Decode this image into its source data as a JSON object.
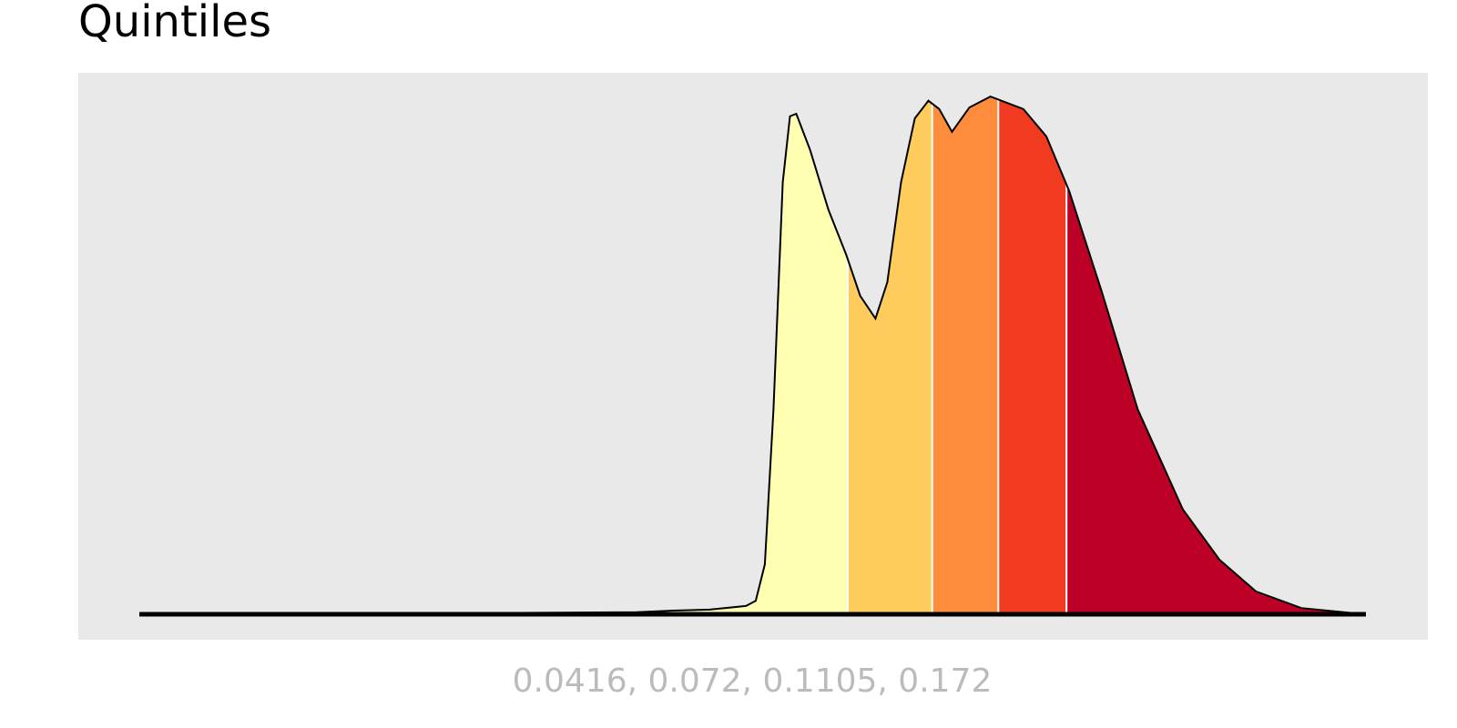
{
  "chart_data": {
    "type": "density",
    "title": "Quintiles",
    "x_label": "0.0416, 0.072, 0.1105, 0.172",
    "quantiles": [
      0.0416,
      0.072,
      0.1105,
      0.172
    ],
    "colors": [
      "#ffffb2",
      "#fecc5c",
      "#fd8d3c",
      "#f03b20",
      "#bd0026"
    ],
    "log_x": true,
    "xlim": [
      0.00042,
      1.2
    ],
    "ylim": [
      0,
      100
    ],
    "x": [
      0.00042,
      0.00326,
      0.0106,
      0.0134,
      0.017,
      0.0215,
      0.0229,
      0.0243,
      0.0257,
      0.0273,
      0.0286,
      0.0298,
      0.0326,
      0.0367,
      0.0412,
      0.0451,
      0.0498,
      0.0538,
      0.0588,
      0.0643,
      0.0702,
      0.0753,
      0.0818,
      0.0916,
      0.105,
      0.13,
      0.151,
      0.175,
      0.216,
      0.273,
      0.366,
      0.464,
      0.588,
      0.789,
      1.19
    ],
    "values": [
      0,
      0.2,
      0.4,
      0.7,
      0.9,
      1.6,
      2.6,
      9.6,
      39.5,
      83.3,
      96,
      96.5,
      89.5,
      78,
      69.3,
      61.4,
      57,
      64,
      83.3,
      95.6,
      99,
      97.4,
      93,
      97.7,
      99.8,
      97.4,
      92.1,
      81.6,
      62.3,
      39.5,
      20.2,
      10.5,
      4.4,
      1.2,
      0
    ]
  }
}
